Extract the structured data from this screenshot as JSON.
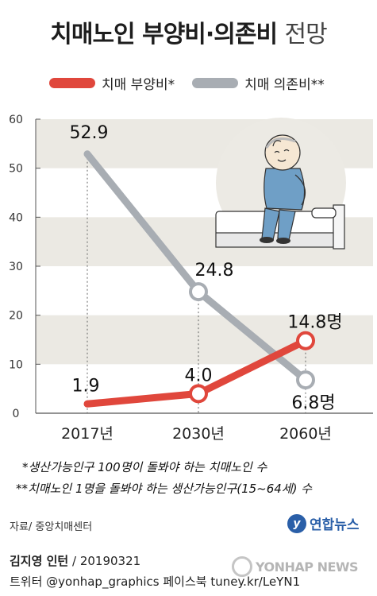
{
  "title": {
    "main": "치매노인 부양비·의존비",
    "suffix": "전망"
  },
  "legend": [
    {
      "label": "치매 부양비*",
      "color": "#e0473c"
    },
    {
      "label": "치매 의존비**",
      "color": "#a8adb3"
    }
  ],
  "chart_data": {
    "type": "line",
    "categories": [
      "2017년",
      "2030년",
      "2060년"
    ],
    "ylim": [
      0,
      60
    ],
    "yticks": [
      "0",
      "10",
      "20",
      "30",
      "40",
      "50",
      "60"
    ],
    "series": [
      {
        "name": "치매 부양비*",
        "color": "#e0473c",
        "values": [
          1.9,
          4.0,
          14.8
        ],
        "labels": [
          "1.9",
          "4.0",
          "14.8명"
        ]
      },
      {
        "name": "치매 의존비**",
        "color": "#a8adb3",
        "values": [
          52.9,
          24.8,
          6.8
        ],
        "labels": [
          "52.9",
          "24.8",
          "6.8명"
        ]
      }
    ]
  },
  "notes": [
    "*생산가능인구 100명이 돌봐야 하는 치매노인 수",
    "**치매노인 1명을 돌봐야 하는 생산가능인구(15~64세) 수"
  ],
  "source": "자료/ 중앙치매센터",
  "logo": "연합뉴스",
  "credit": {
    "name": "김지영 인턴",
    "date": " / 20190321"
  },
  "social": "트위터 @yonhap_graphics  페이스북 tuney.kr/LeYN1",
  "watermark": "YONHAP NEWS"
}
